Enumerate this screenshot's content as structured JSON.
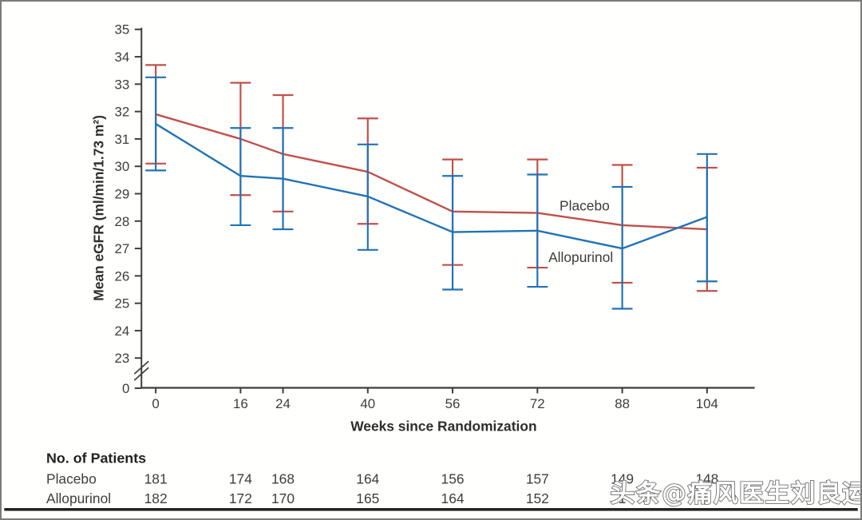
{
  "figure": {
    "watermark": "头条@痛风医生刘良运",
    "patients_table": {
      "title": "No. of Patients",
      "rows": [
        {
          "label": "Placebo",
          "values": [
            "181",
            "174",
            "168",
            "164",
            "156",
            "157",
            "149",
            "148"
          ]
        },
        {
          "label": "Allopurinol",
          "values": [
            "182",
            "172",
            "170",
            "165",
            "164",
            "152",
            "1",
            ""
          ]
        }
      ]
    },
    "colors": {
      "placebo": "#c0504a",
      "allopurinol": "#2173b5",
      "axis_text": "#3d3d3d",
      "bottom_rule": "#1f1f1f",
      "frame_border": "#7c7c7c"
    }
  },
  "chart_data": {
    "type": "line",
    "title": "",
    "xlabel": "Weeks since Randomization",
    "ylabel": "Mean eGFR (ml/min/1.73 m²)",
    "x": [
      0,
      16,
      24,
      40,
      56,
      72,
      88,
      104
    ],
    "yticks": [
      35,
      34,
      33,
      32,
      31,
      30,
      29,
      28,
      27,
      26,
      25,
      24,
      23
    ],
    "y_origin_label": "0",
    "axis_break": true,
    "ylim": [
      23,
      35
    ],
    "grid": false,
    "legend_position": "inline-annotations",
    "series": [
      {
        "name": "Placebo",
        "color": "#c0504a",
        "values": [
          31.9,
          31.0,
          30.45,
          29.8,
          28.35,
          28.3,
          27.85,
          27.7
        ],
        "ci_low": [
          30.1,
          28.95,
          28.35,
          27.9,
          26.4,
          26.3,
          25.75,
          25.45
        ],
        "ci_high": [
          33.7,
          33.05,
          32.6,
          31.75,
          30.25,
          30.25,
          30.05,
          29.95
        ]
      },
      {
        "name": "Allopurinol",
        "color": "#2173b5",
        "values": [
          31.55,
          29.65,
          29.55,
          28.9,
          27.6,
          27.65,
          27.0,
          28.15
        ],
        "ci_low": [
          29.85,
          27.85,
          27.7,
          26.95,
          25.5,
          25.6,
          24.8,
          25.8
        ],
        "ci_high": [
          33.25,
          31.4,
          31.4,
          30.8,
          29.65,
          29.7,
          29.25,
          30.45
        ]
      }
    ]
  }
}
